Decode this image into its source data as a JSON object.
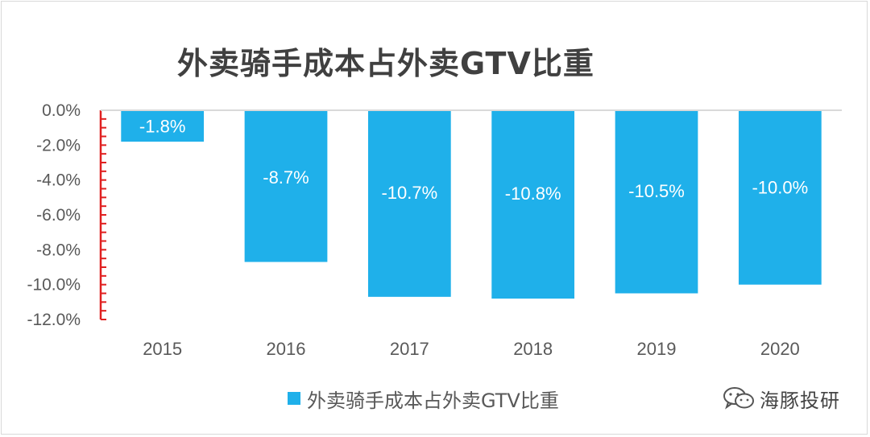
{
  "colors": {
    "bar": "#1fb0ea",
    "axis_marker": "#e02020",
    "grid": "#d9d9d9"
  },
  "brand": {
    "name": "海豚投研",
    "icon": "wechat-icon"
  },
  "chart_data": {
    "type": "bar",
    "title": "外卖骑手成本占外卖GTV比重",
    "categories": [
      "2015",
      "2016",
      "2017",
      "2018",
      "2019",
      "2020"
    ],
    "series": [
      {
        "name": "外卖骑手成本占外卖GTV比重",
        "values": [
          -1.8,
          -8.7,
          -10.7,
          -10.8,
          -10.5,
          -10.0
        ],
        "labels": [
          "-1.8%",
          "-8.7%",
          "-10.7%",
          "-10.8%",
          "-10.5%",
          "-10.0%"
        ]
      }
    ],
    "y_ticks": [
      "0.0%",
      "-2.0%",
      "-4.0%",
      "-6.0%",
      "-8.0%",
      "-10.0%",
      "-12.0%"
    ],
    "ylim": [
      -12,
      0
    ],
    "grid": false,
    "legend_position": "bottom",
    "data_labels": "inside"
  }
}
